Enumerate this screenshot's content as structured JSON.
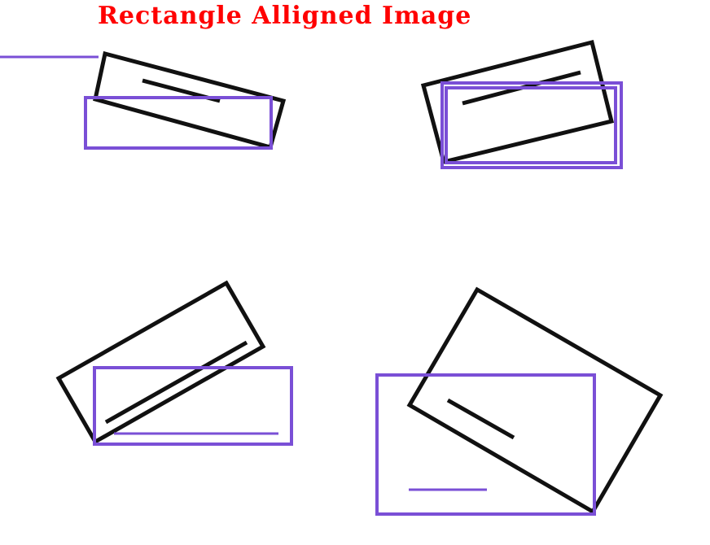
{
  "title": "Rectangle Alligned Image",
  "colors": {
    "title": "#ff0000",
    "shape": "#111111",
    "bbox": "#7a4fd6",
    "background": "#ffffff"
  }
}
